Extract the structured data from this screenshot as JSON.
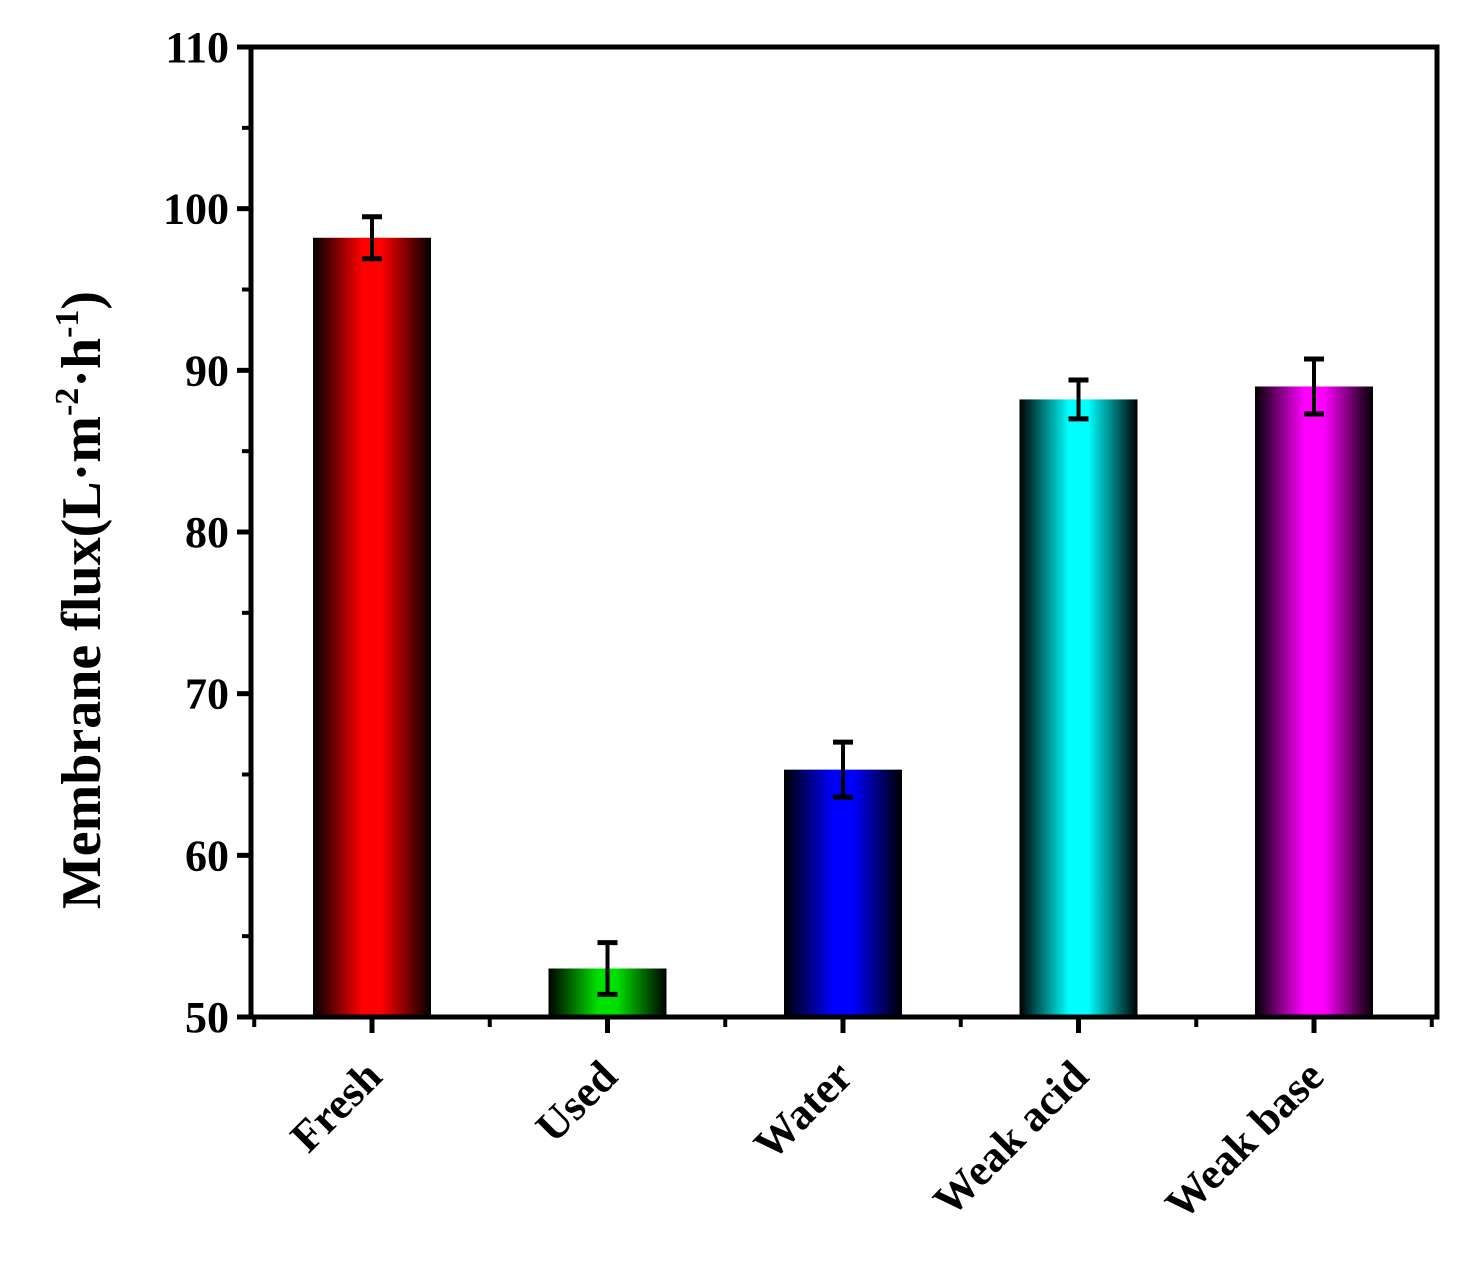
{
  "chart_data": {
    "type": "bar",
    "categories": [
      "Fresh",
      "Used",
      "Water",
      "Weak acid",
      "Weak base"
    ],
    "values": [
      98.2,
      53.0,
      65.3,
      88.2,
      89.0
    ],
    "errors": [
      1.3,
      1.6,
      1.7,
      1.2,
      1.7
    ],
    "colors": [
      "#ff0000",
      "#00e000",
      "#0000ff",
      "#00ffff",
      "#ff00ff"
    ],
    "ylabel": {
      "main": "Membrane flux(L·m",
      "sup1": "-2",
      "mid": "·h",
      "sup2": "-1",
      "end": ")"
    },
    "xlabel": "",
    "title": "",
    "ylim": [
      50,
      110
    ],
    "yticks": [
      50,
      60,
      70,
      80,
      90,
      100,
      110
    ],
    "ytick_labels": [
      "50",
      "60",
      "70",
      "80",
      "90",
      "100",
      "110"
    ],
    "grid": false,
    "legend": "none"
  }
}
